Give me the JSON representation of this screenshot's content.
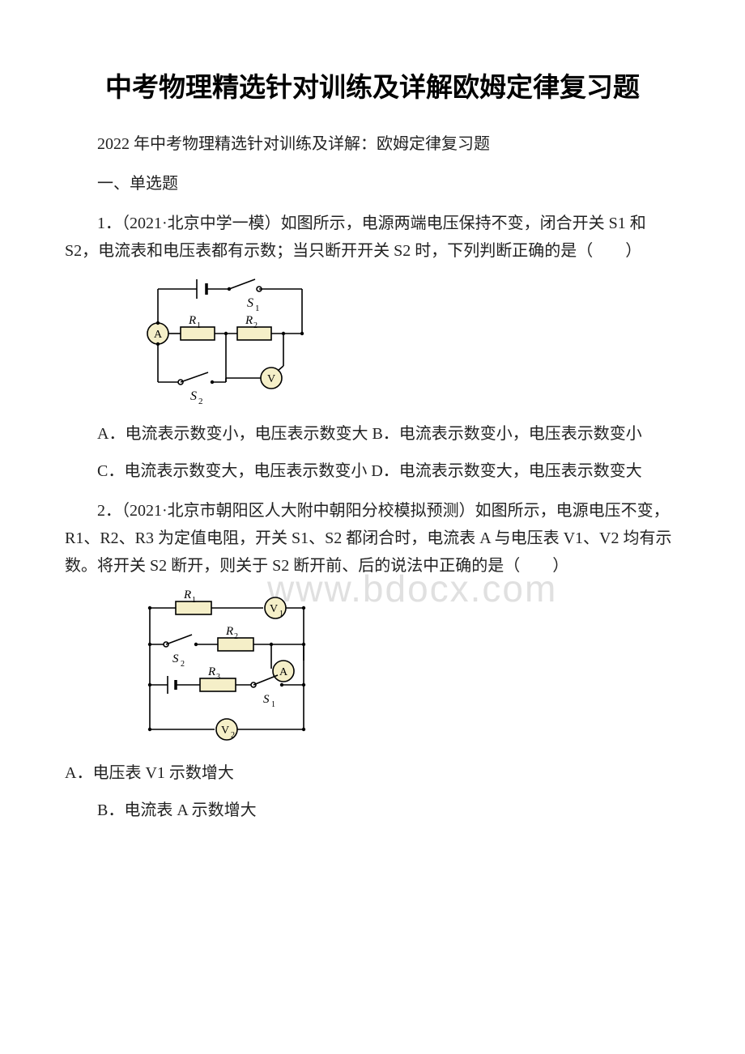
{
  "title": "中考物理精选针对训练及详解欧姆定律复习题",
  "subtitle": "2022 年中考物理精选针对训练及详解：欧姆定律复习题",
  "section1": "一、单选题",
  "q1": {
    "stem": "1．（2021·北京中学一模）如图所示，电源两端电压保持不变，闭合开关 S1 和 S2，电流表和电压表都有示数；当只断开开关 S2 时，下列判断正确的是（　　）",
    "optA": "A．电流表示数变小，电压表示数变大 B．电流表示数变小，电压表示数变小",
    "optC": "C．电流表示数变大，电压表示数变小 D．电流表示数变大，电压表示数变大",
    "diagram": {
      "labels": {
        "A": "A",
        "V": "V",
        "R1": "R",
        "R1sub": "1",
        "R2": "R",
        "R2sub": "2",
        "S1": "S",
        "S1sub": "1",
        "S2": "S",
        "S2sub": "2"
      },
      "colors": {
        "stroke": "#000000",
        "fill_resistor": "#f5efc8",
        "fill_meter": "#f5efc8"
      },
      "lineWidth": 1.6
    }
  },
  "q2": {
    "stem": "2．（2021·北京市朝阳区人大附中朝阳分校模拟预测）如图所示，电源电压不变，R1、R2、R3 为定值电阻，开关 S1、S2 都闭合时，电流表 A 与电压表 V1、V2 均有示数。将开关 S2 断开，则关于 S2 断开前、后的说法中正确的是（　　）",
    "optA": "A．电压表 V1 示数增大",
    "optB": "B．电流表 A 示数增大",
    "diagram": {
      "labels": {
        "A": "A",
        "V1": "V",
        "V1sub": "1",
        "V2": "V",
        "V2sub": "2",
        "R1": "R",
        "R1sub": "1",
        "R2": "R",
        "R2sub": "2",
        "R3": "R",
        "R3sub": "3",
        "S1": "S",
        "S1sub": "1",
        "S2": "S",
        "S2sub": "2"
      },
      "colors": {
        "stroke": "#000000",
        "fill_resistor": "#f5efc8",
        "fill_meter": "#f5efc8"
      },
      "lineWidth": 1.6
    }
  },
  "watermark": "www.bdocx.com"
}
